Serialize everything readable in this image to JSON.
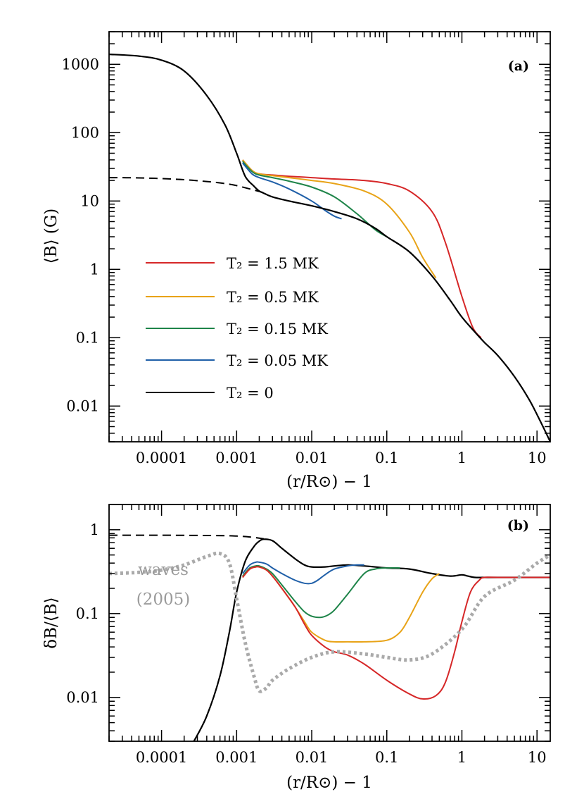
{
  "chart_data": [
    {
      "type": "line",
      "panel_label": "(a)",
      "xlabel": "(r/R⊙) − 1",
      "ylabel": "⟨B⟩  (G)",
      "xscale": "log",
      "yscale": "log",
      "xlim": [
        2e-05,
        15
      ],
      "ylim": [
        0.003,
        3000
      ],
      "xticks": [
        0.0001,
        0.001,
        0.01,
        0.1,
        1,
        10
      ],
      "xtick_labels": [
        "0.0001",
        "0.001",
        "0.01",
        "0.1",
        "1",
        "10"
      ],
      "yticks": [
        0.01,
        0.1,
        1,
        10,
        100,
        1000
      ],
      "ytick_labels": [
        "0.01",
        "0.1",
        "1",
        "10",
        "100",
        "1000"
      ],
      "legend_position": "center-left",
      "series": [
        {
          "name": "T₂ = 1.5 MK",
          "color": "#d62728",
          "style": "solid",
          "x": [
            0.0012,
            0.0016,
            0.002,
            0.003,
            0.005,
            0.01,
            0.02,
            0.05,
            0.1,
            0.2,
            0.4,
            0.6,
            1.0,
            1.4,
            1.8
          ],
          "y": [
            40,
            28,
            25,
            24,
            23,
            22,
            21,
            20,
            18,
            14,
            7,
            2.5,
            0.4,
            0.14,
            0.1
          ]
        },
        {
          "name": "T₂ = 0.5 MK",
          "color": "#e8a317",
          "style": "solid",
          "x": [
            0.0012,
            0.0016,
            0.002,
            0.003,
            0.005,
            0.01,
            0.02,
            0.05,
            0.1,
            0.2,
            0.3,
            0.45
          ],
          "y": [
            40,
            28,
            25,
            23.5,
            22,
            20,
            18,
            14,
            9,
            3.5,
            1.5,
            0.75
          ]
        },
        {
          "name": "T₂ = 0.15 MK",
          "color": "#1e8449",
          "style": "solid",
          "x": [
            0.0012,
            0.0016,
            0.002,
            0.003,
            0.005,
            0.01,
            0.02,
            0.04,
            0.07,
            0.1
          ],
          "y": [
            38,
            27,
            24,
            22,
            19.5,
            16,
            11.5,
            6.5,
            3.8,
            3.0
          ]
        },
        {
          "name": "T₂ = 0.05 MK",
          "color": "#1f5fa8",
          "style": "solid",
          "x": [
            0.0012,
            0.0016,
            0.002,
            0.003,
            0.005,
            0.01,
            0.015,
            0.02,
            0.025
          ],
          "y": [
            36,
            25,
            22,
            19,
            15,
            10,
            7.3,
            6.0,
            5.5
          ]
        },
        {
          "name": "T₂ = 0",
          "color": "#000000",
          "style": "solid",
          "x": [
            2e-05,
            5e-05,
            0.0001,
            0.0002,
            0.0004,
            0.0007,
            0.001,
            0.0013,
            0.0017,
            0.002,
            0.0023,
            0.003,
            0.005,
            0.01,
            0.02,
            0.04,
            0.07,
            0.1,
            0.2,
            0.4,
            0.7,
            1.0,
            1.5,
            2.0,
            3,
            5,
            8,
            12,
            15
          ],
          "y": [
            1400,
            1320,
            1150,
            800,
            350,
            130,
            50,
            23,
            16.5,
            14,
            13,
            11.5,
            10,
            8.5,
            7,
            5.5,
            4.0,
            3.0,
            1.8,
            0.8,
            0.35,
            0.2,
            0.12,
            0.085,
            0.055,
            0.027,
            0.012,
            0.005,
            0.003
          ]
        },
        {
          "name": "",
          "color": "#000000",
          "style": "dashed",
          "x": [
            2e-05,
            5e-05,
            0.0001,
            0.0002,
            0.0004,
            0.0007,
            0.001,
            0.0015,
            0.002,
            0.0023
          ],
          "y": [
            22,
            21.8,
            21.3,
            20.5,
            19.3,
            18,
            16.8,
            15,
            13.8,
            13.2
          ]
        }
      ]
    },
    {
      "type": "line",
      "panel_label": "(b)",
      "xlabel": "(r/R⊙) − 1",
      "ylabel": "δB/⟨B⟩",
      "xscale": "log",
      "yscale": "log",
      "xlim": [
        2e-05,
        15
      ],
      "ylim": [
        0.003,
        2
      ],
      "xticks": [
        0.0001,
        0.001,
        0.01,
        0.1,
        1,
        10
      ],
      "xtick_labels": [
        "0.0001",
        "0.001",
        "0.01",
        "0.1",
        "1",
        "10"
      ],
      "yticks": [
        0.01,
        0.1,
        1
      ],
      "ytick_labels": [
        "0.01",
        "0.1",
        "1"
      ],
      "annotation": {
        "line1": "waves",
        "line2": "(2005)",
        "color": "#9b9b9b"
      },
      "series": [
        {
          "name": "",
          "color": "#000000",
          "style": "solid",
          "x": [
            0.00027,
            0.0004,
            0.0006,
            0.0008,
            0.001,
            0.0013,
            0.0017,
            0.002,
            0.0023,
            0.003,
            0.004,
            0.006,
            0.008,
            0.01,
            0.015,
            0.02,
            0.03,
            0.05,
            0.1,
            0.2,
            0.4,
            0.7,
            1.0,
            1.2,
            1.5,
            2,
            3,
            5,
            10,
            15
          ],
          "y": [
            0.003,
            0.006,
            0.018,
            0.06,
            0.18,
            0.42,
            0.63,
            0.73,
            0.77,
            0.74,
            0.6,
            0.45,
            0.38,
            0.36,
            0.36,
            0.37,
            0.38,
            0.37,
            0.35,
            0.34,
            0.3,
            0.28,
            0.29,
            0.28,
            0.27,
            0.27,
            0.27,
            0.27,
            0.27,
            0.27
          ]
        },
        {
          "name": "",
          "color": "#000000",
          "style": "dashed",
          "x": [
            2e-05,
            5e-05,
            0.0001,
            0.0003,
            0.0007,
            0.001,
            0.0015,
            0.0023
          ],
          "y": [
            0.86,
            0.86,
            0.86,
            0.855,
            0.85,
            0.84,
            0.82,
            0.78
          ]
        },
        {
          "name": "",
          "color": "#1f5fa8",
          "style": "solid",
          "x": [
            0.0012,
            0.0015,
            0.0018,
            0.002,
            0.0025,
            0.003,
            0.004,
            0.006,
            0.008,
            0.01,
            0.012,
            0.015,
            0.02,
            0.03,
            0.04,
            0.05
          ],
          "y": [
            0.3,
            0.38,
            0.41,
            0.41,
            0.39,
            0.35,
            0.3,
            0.25,
            0.23,
            0.23,
            0.25,
            0.29,
            0.34,
            0.37,
            0.38,
            0.38
          ]
        },
        {
          "name": "",
          "color": "#1e8449",
          "style": "solid",
          "x": [
            0.0012,
            0.0015,
            0.0018,
            0.002,
            0.0025,
            0.003,
            0.004,
            0.006,
            0.008,
            0.01,
            0.013,
            0.016,
            0.02,
            0.03,
            0.05,
            0.07,
            0.1,
            0.15
          ],
          "y": [
            0.28,
            0.35,
            0.37,
            0.37,
            0.34,
            0.3,
            0.22,
            0.14,
            0.105,
            0.093,
            0.09,
            0.095,
            0.11,
            0.17,
            0.3,
            0.34,
            0.35,
            0.35
          ]
        },
        {
          "name": "",
          "color": "#e8a317",
          "style": "solid",
          "x": [
            0.0012,
            0.0015,
            0.0018,
            0.002,
            0.0025,
            0.003,
            0.004,
            0.006,
            0.008,
            0.01,
            0.015,
            0.02,
            0.03,
            0.05,
            0.1,
            0.15,
            0.2,
            0.3,
            0.4,
            0.5
          ],
          "y": [
            0.27,
            0.34,
            0.36,
            0.36,
            0.33,
            0.28,
            0.2,
            0.12,
            0.08,
            0.06,
            0.048,
            0.046,
            0.046,
            0.046,
            0.048,
            0.06,
            0.09,
            0.18,
            0.26,
            0.3
          ]
        },
        {
          "name": "",
          "color": "#d62728",
          "style": "solid",
          "x": [
            0.0012,
            0.0015,
            0.0018,
            0.002,
            0.0025,
            0.003,
            0.004,
            0.006,
            0.008,
            0.01,
            0.015,
            0.02,
            0.03,
            0.05,
            0.1,
            0.2,
            0.3,
            0.45,
            0.6,
            0.8,
            1.0,
            1.3,
            1.7,
            2.0,
            3,
            15
          ],
          "y": [
            0.27,
            0.34,
            0.36,
            0.36,
            0.33,
            0.28,
            0.2,
            0.12,
            0.075,
            0.055,
            0.04,
            0.035,
            0.032,
            0.025,
            0.016,
            0.011,
            0.0096,
            0.0105,
            0.015,
            0.035,
            0.08,
            0.18,
            0.25,
            0.27,
            0.27,
            0.27
          ]
        },
        {
          "name": "",
          "color": "#aaaaaa",
          "style": "dotted",
          "x": [
            2e-05,
            5e-05,
            0.0001,
            0.0002,
            0.0004,
            0.0006,
            0.0008,
            0.001,
            0.0013,
            0.0017,
            0.002,
            0.0025,
            0.003,
            0.005,
            0.01,
            0.02,
            0.05,
            0.1,
            0.2,
            0.4,
            1.0,
            2,
            5,
            10,
            15
          ],
          "y": [
            0.3,
            0.31,
            0.33,
            0.38,
            0.48,
            0.52,
            0.4,
            0.15,
            0.045,
            0.018,
            0.012,
            0.013,
            0.016,
            0.022,
            0.03,
            0.035,
            0.033,
            0.03,
            0.028,
            0.033,
            0.065,
            0.16,
            0.25,
            0.4,
            0.5
          ]
        }
      ]
    }
  ]
}
